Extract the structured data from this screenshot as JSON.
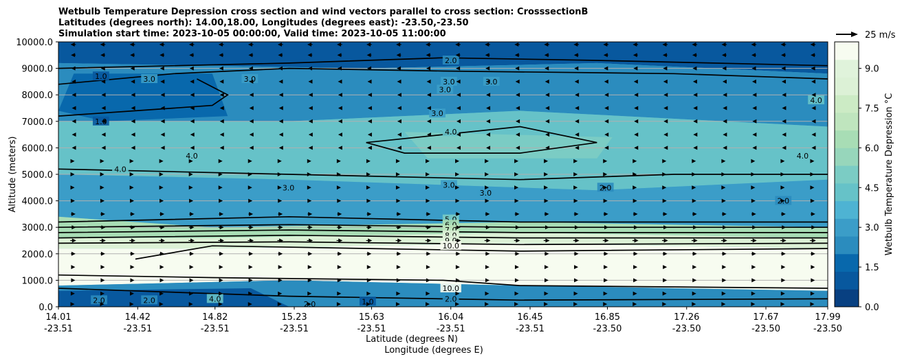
{
  "chart_data": {
    "type": "contour",
    "title_lines": [
      "Wetbulb Temperature Depression cross section and wind vectors parallel to cross section: CrosssectionB",
      "Latitudes (degrees north): 14.00,18.00, Longitudes (degrees east): -23.50,-23.50",
      "Simulation start time: 2023-10-05 00:00:00, Valid time: 2023-10-05 11:00:00"
    ],
    "ylabel": "Altitude (meters)",
    "xlabel_lines": [
      "Latitude (degrees N)",
      "Longitude (degrees E)"
    ],
    "ylim": [
      0,
      10000
    ],
    "y_ticks": [
      "0.0",
      "1000.0",
      "2000.0",
      "3000.0",
      "4000.0",
      "5000.0",
      "6000.0",
      "7000.0",
      "8000.0",
      "9000.0",
      "10000.0"
    ],
    "x_ticks": [
      {
        "lat": "14.01",
        "lon": "-23.51"
      },
      {
        "lat": "14.42",
        "lon": "-23.51"
      },
      {
        "lat": "14.82",
        "lon": "-23.51"
      },
      {
        "lat": "15.23",
        "lon": "-23.51"
      },
      {
        "lat": "15.63",
        "lon": "-23.51"
      },
      {
        "lat": "16.04",
        "lon": "-23.51"
      },
      {
        "lat": "16.45",
        "lon": "-23.51"
      },
      {
        "lat": "16.85",
        "lon": "-23.50"
      },
      {
        "lat": "17.26",
        "lon": "-23.50"
      },
      {
        "lat": "17.67",
        "lon": "-23.50"
      },
      {
        "lat": "17.99",
        "lon": "-23.50"
      }
    ],
    "x_range": [
      14.01,
      17.99
    ],
    "grid": "horizontal",
    "colorbar": {
      "label": "Wetbulb Temperature Depression °C",
      "range": [
        0,
        10
      ],
      "ticks": [
        "0.0",
        "1.5",
        "3.0",
        "4.5",
        "6.0",
        "7.5",
        "9.0"
      ],
      "colors": [
        "#084081",
        "#08589e",
        "#0868ac",
        "#2b8cbe",
        "#3b9dc8",
        "#4eb3d3",
        "#66c2c8",
        "#7bccc4",
        "#97d6bb",
        "#a8ddb5",
        "#bfe5be",
        "#ccebc5",
        "#dcf1d6",
        "#e0f3db",
        "#f7fcf0"
      ]
    },
    "quiver_key": {
      "label": "25 m/s",
      "speed": 25
    },
    "contour_labels": [
      {
        "text": "2.0",
        "lat": 16.04,
        "alt": 9300
      },
      {
        "text": "3.0",
        "lat": 16.03,
        "alt": 8500
      },
      {
        "text": "3.0",
        "lat": 16.01,
        "alt": 8200
      },
      {
        "text": "3.0",
        "lat": 15.97,
        "alt": 7300
      },
      {
        "text": "4.0",
        "lat": 16.04,
        "alt": 6600
      },
      {
        "text": "3.0",
        "lat": 16.03,
        "alt": 4600
      },
      {
        "text": "5.0",
        "lat": 16.04,
        "alt": 3300
      },
      {
        "text": "6.0",
        "lat": 16.04,
        "alt": 3100
      },
      {
        "text": "7.0",
        "lat": 16.04,
        "alt": 2900
      },
      {
        "text": "8.0",
        "lat": 16.04,
        "alt": 2700
      },
      {
        "text": "9.0",
        "lat": 16.04,
        "alt": 2500
      },
      {
        "text": "10.0",
        "lat": 16.04,
        "alt": 2300
      },
      {
        "text": "10.0",
        "lat": 16.04,
        "alt": 700
      },
      {
        "text": "2.0",
        "lat": 16.04,
        "alt": 300
      },
      {
        "text": "1.0",
        "lat": 14.23,
        "alt": 8700
      },
      {
        "text": "3.0",
        "lat": 14.48,
        "alt": 8600
      },
      {
        "text": "3.0",
        "lat": 15.0,
        "alt": 8600
      },
      {
        "text": "3.0",
        "lat": 16.25,
        "alt": 8500
      },
      {
        "text": "1.0",
        "lat": 14.23,
        "alt": 7000
      },
      {
        "text": "4.0",
        "lat": 14.33,
        "alt": 5200
      },
      {
        "text": "4.0",
        "lat": 14.7,
        "alt": 5700
      },
      {
        "text": "3.0",
        "lat": 15.2,
        "alt": 4500
      },
      {
        "text": "3.0",
        "lat": 16.22,
        "alt": 4300
      },
      {
        "text": "2.0",
        "lat": 16.84,
        "alt": 4500
      },
      {
        "text": "2.0",
        "lat": 17.76,
        "alt": 4000
      },
      {
        "text": "4.0",
        "lat": 17.86,
        "alt": 5700
      },
      {
        "text": "4.0",
        "lat": 17.93,
        "alt": 7800
      },
      {
        "text": "4.0",
        "lat": 14.82,
        "alt": 300
      },
      {
        "text": "2.0",
        "lat": 14.22,
        "alt": 250
      },
      {
        "text": "2.0",
        "lat": 14.48,
        "alt": 250
      },
      {
        "text": "2.0",
        "lat": 15.31,
        "alt": 100
      },
      {
        "text": "1.0",
        "lat": 15.61,
        "alt": 200
      }
    ],
    "wind_levels": [
      {
        "alt": 9900,
        "u": -8
      },
      {
        "alt": 9500,
        "u": -7
      },
      {
        "alt": 9000,
        "u": -6
      },
      {
        "alt": 8500,
        "u": -5
      },
      {
        "alt": 8000,
        "u": -4
      },
      {
        "alt": 7500,
        "u": -4
      },
      {
        "alt": 7000,
        "u": -3
      },
      {
        "alt": 6500,
        "u": -3
      },
      {
        "alt": 6000,
        "u": -3
      },
      {
        "alt": 5500,
        "u": 2
      },
      {
        "alt": 5000,
        "u": 3
      },
      {
        "alt": 4500,
        "u": 4
      },
      {
        "alt": 4000,
        "u": 5
      },
      {
        "alt": 3500,
        "u": 7
      },
      {
        "alt": 3000,
        "u": 8
      },
      {
        "alt": 2500,
        "u": 9
      },
      {
        "alt": 2000,
        "u": 7
      },
      {
        "alt": 1500,
        "u": 6
      },
      {
        "alt": 1000,
        "u": 6
      },
      {
        "alt": 500,
        "u": 5
      },
      {
        "alt": 100,
        "u": 4
      }
    ]
  }
}
